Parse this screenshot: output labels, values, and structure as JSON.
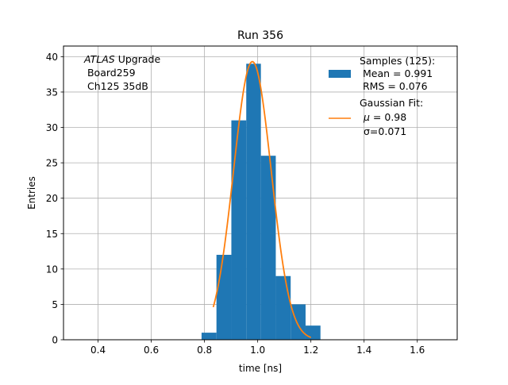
{
  "chart_data": {
    "type": "bar",
    "title": "Run 356",
    "xlabel": "time [ns]",
    "ylabel": "Entries",
    "xlim": [
      0.27,
      1.75
    ],
    "ylim": [
      0,
      41.5
    ],
    "xticks": [
      0.4,
      0.6,
      0.8,
      1.0,
      1.2,
      1.4,
      1.6
    ],
    "xtick_labels": [
      "0.4",
      "0.6",
      "0.8",
      "1.0",
      "1.2",
      "1.4",
      "1.6"
    ],
    "yticks": [
      0,
      5,
      10,
      15,
      20,
      25,
      30,
      35,
      40
    ],
    "ytick_labels": [
      "0",
      "5",
      "10",
      "15",
      "20",
      "25",
      "30",
      "35",
      "40"
    ],
    "grid": true,
    "histogram": {
      "bin_edges": [
        0.789,
        0.845,
        0.901,
        0.957,
        1.012,
        1.068,
        1.124,
        1.18,
        1.236
      ],
      "counts": [
        1,
        12,
        31,
        39,
        26,
        9,
        5,
        2
      ],
      "color": "#1f77b4"
    },
    "fit": {
      "type": "gaussian",
      "mu": 0.98,
      "sigma": 0.071,
      "amplitude": 39.3,
      "x_range": [
        0.833,
        1.2
      ],
      "color": "#ff7f0e"
    },
    "annotation": {
      "italic": "ATLAS",
      "line1_rest": " Upgrade",
      "line2": " Board259",
      "line3": " Ch125 35dB"
    },
    "legend": {
      "position": "upper right",
      "entries": [
        {
          "lines": [
            "Samples (125):",
            " Mean = 0.991",
            " RMS = 0.076"
          ],
          "kind": "patch",
          "color": "#1f77b4"
        },
        {
          "lines": [
            "Gaussian Fit:",
            "",
            "σ=0.071"
          ],
          "mu_symbol": "μ",
          "mu_text": " = 0.98",
          "kind": "line",
          "color": "#ff7f0e"
        }
      ]
    }
  }
}
